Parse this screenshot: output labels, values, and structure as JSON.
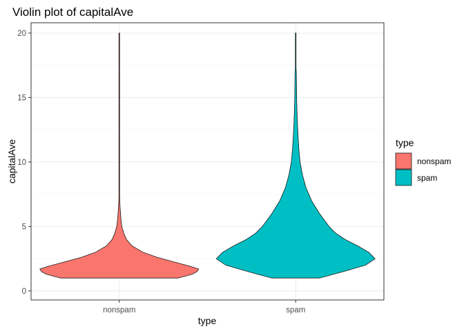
{
  "chart_data": {
    "type": "violin",
    "title": "Violin plot of capitalAve",
    "xlabel": "type",
    "ylabel": "capitalAve",
    "categories": [
      "nonspam",
      "spam"
    ],
    "ylim": [
      -0.7,
      20.8
    ],
    "yticks": [
      0,
      5,
      10,
      15,
      20
    ],
    "grid": true,
    "legend": {
      "title": "type",
      "placement": "right",
      "entries": [
        {
          "label": "nonspam",
          "color": "#F8766D"
        },
        {
          "label": "spam",
          "color": "#00BFC4"
        }
      ]
    },
    "series": [
      {
        "name": "nonspam",
        "color": "#F8766D",
        "density_profile": [
          [
            1.0,
            0.74
          ],
          [
            1.1,
            0.8
          ],
          [
            1.3,
            0.92
          ],
          [
            1.5,
            0.98
          ],
          [
            1.7,
            1.0
          ],
          [
            1.9,
            0.9
          ],
          [
            2.2,
            0.72
          ],
          [
            2.6,
            0.48
          ],
          [
            3.0,
            0.3
          ],
          [
            3.5,
            0.16
          ],
          [
            4.0,
            0.09
          ],
          [
            4.5,
            0.055
          ],
          [
            5.0,
            0.032
          ],
          [
            5.5,
            0.022
          ],
          [
            6.0,
            0.016
          ],
          [
            6.5,
            0.01
          ],
          [
            7.0,
            0.006
          ],
          [
            7.5,
            0.004
          ],
          [
            8.0,
            0.0035
          ],
          [
            9.0,
            0.002
          ],
          [
            10.0,
            0.003
          ],
          [
            11.0,
            0.001
          ],
          [
            15.0,
            0.001
          ],
          [
            17.8,
            0.003
          ],
          [
            18.0,
            0.003
          ],
          [
            20.0,
            0.0
          ]
        ]
      },
      {
        "name": "spam",
        "color": "#00BFC4",
        "density_profile": [
          [
            1.0,
            0.3
          ],
          [
            1.5,
            0.6
          ],
          [
            2.0,
            0.88
          ],
          [
            2.5,
            1.0
          ],
          [
            3.0,
            0.92
          ],
          [
            3.5,
            0.78
          ],
          [
            4.0,
            0.62
          ],
          [
            4.5,
            0.5
          ],
          [
            5.0,
            0.42
          ],
          [
            6.0,
            0.3
          ],
          [
            7.0,
            0.2
          ],
          [
            8.0,
            0.13
          ],
          [
            9.0,
            0.085
          ],
          [
            10.0,
            0.055
          ],
          [
            11.0,
            0.04
          ],
          [
            12.0,
            0.03
          ],
          [
            13.0,
            0.022
          ],
          [
            14.0,
            0.016
          ],
          [
            15.0,
            0.012
          ],
          [
            16.0,
            0.01
          ],
          [
            17.0,
            0.008
          ],
          [
            17.3,
            0.004
          ],
          [
            18.0,
            0.003
          ],
          [
            20.0,
            0.0
          ]
        ]
      }
    ]
  }
}
